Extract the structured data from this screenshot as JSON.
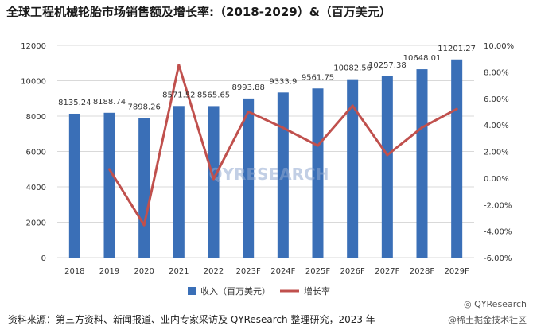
{
  "page": {
    "source_note": "资料来源：第三方资料、新闻报道、业内专家采访及 QYResearch 整理研究，2023 年",
    "watermark_brand": "QYResearch",
    "watermark_community": "@稀土掘金技术社区",
    "logo_text": "QYRESEARCH"
  },
  "colors": {
    "bar": "#3a6fb7",
    "line": "#c0504d",
    "grid": "#d9d9d9"
  },
  "chart_data": {
    "type": "bar",
    "title": "全球工程机械轮胎市场销售额及增长率:（2018-2029）&（百万美元）",
    "categories": [
      "2018",
      "2019",
      "2020",
      "2021",
      "2022",
      "2023F",
      "2024F",
      "2025F",
      "2026F",
      "2027F",
      "2028F",
      "2029F"
    ],
    "series": [
      {
        "name": "收入（百万美元）",
        "type": "bar",
        "axis": "left",
        "values": [
          8135.24,
          8188.74,
          7898.26,
          8571.52,
          8565.65,
          8993.88,
          9333.9,
          9561.75,
          10082.56,
          10257.38,
          10648.01,
          11201.27
        ],
        "labels": [
          "8135.24",
          "8188.74",
          "7898.26",
          "8571.52",
          "8565.65",
          "8993.88",
          "9333.9",
          "9561.75",
          "10082.56",
          "10257.38",
          "10648.01",
          "11201.27"
        ]
      },
      {
        "name": "增长率",
        "type": "line",
        "axis": "right",
        "values": [
          null,
          0.66,
          -3.55,
          8.52,
          -0.07,
          5.0,
          3.78,
          2.44,
          5.45,
          1.73,
          3.81,
          5.2
        ]
      }
    ],
    "ylim_left": [
      0,
      12000
    ],
    "yticks_left": [
      "0",
      "2000",
      "4000",
      "6000",
      "8000",
      "10000",
      "12000"
    ],
    "ylim_right": [
      -6,
      10
    ],
    "yticks_right": [
      "-6.00%",
      "-4.00%",
      "-2.00%",
      "0.00%",
      "2.00%",
      "4.00%",
      "6.00%",
      "8.00%",
      "10.00%"
    ],
    "grid": true,
    "legend": "bottom-center"
  }
}
